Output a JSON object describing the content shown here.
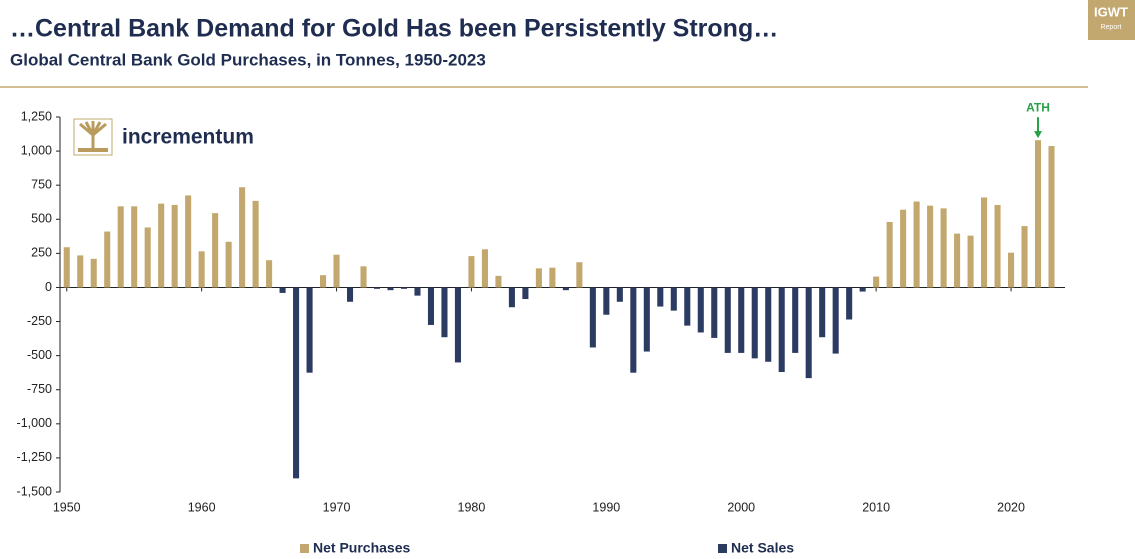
{
  "chart_data": {
    "type": "bar",
    "title": "…Central Bank Demand for Gold Has been Persistently Strong…",
    "subtitle": "Global Central Bank Gold Purchases, in Tonnes, 1950-2023",
    "brand": "incrementum",
    "badge": {
      "title": "IGWT",
      "subtitle": "Report"
    },
    "annotation": "ATH",
    "x": [
      1950,
      1951,
      1952,
      1953,
      1954,
      1955,
      1956,
      1957,
      1958,
      1959,
      1960,
      1961,
      1962,
      1963,
      1964,
      1965,
      1966,
      1967,
      1968,
      1969,
      1970,
      1971,
      1972,
      1973,
      1974,
      1975,
      1976,
      1977,
      1978,
      1979,
      1980,
      1981,
      1982,
      1983,
      1984,
      1985,
      1986,
      1987,
      1988,
      1989,
      1990,
      1991,
      1992,
      1993,
      1994,
      1995,
      1996,
      1997,
      1998,
      1999,
      2000,
      2001,
      2002,
      2003,
      2004,
      2005,
      2006,
      2007,
      2008,
      2009,
      2010,
      2011,
      2012,
      2013,
      2014,
      2015,
      2016,
      2017,
      2018,
      2019,
      2020,
      2021,
      2022,
      2023
    ],
    "series": [
      {
        "name": "Net Purchases",
        "color": "#c2a86e",
        "values": [
          295,
          235,
          210,
          410,
          595,
          595,
          440,
          615,
          605,
          675,
          265,
          545,
          335,
          735,
          635,
          200,
          null,
          null,
          null,
          90,
          240,
          null,
          155,
          null,
          null,
          null,
          null,
          null,
          null,
          null,
          230,
          280,
          85,
          null,
          null,
          140,
          145,
          null,
          185,
          null,
          null,
          null,
          null,
          null,
          null,
          null,
          null,
          null,
          null,
          null,
          null,
          null,
          null,
          null,
          null,
          null,
          null,
          null,
          null,
          null,
          80,
          480,
          570,
          630,
          600,
          580,
          395,
          380,
          660,
          605,
          255,
          450,
          1080,
          1037
        ]
      },
      {
        "name": "Net Sales",
        "color": "#2b3b61",
        "values": [
          null,
          null,
          null,
          null,
          null,
          null,
          null,
          null,
          null,
          null,
          null,
          null,
          null,
          null,
          null,
          null,
          -40,
          -1400,
          -625,
          null,
          null,
          -105,
          null,
          -10,
          -20,
          -10,
          -60,
          -275,
          -365,
          -550,
          null,
          null,
          null,
          -145,
          -85,
          null,
          null,
          -20,
          null,
          -440,
          -200,
          -105,
          -625,
          -470,
          -140,
          -170,
          -280,
          -330,
          -370,
          -480,
          -480,
          -520,
          -545,
          -620,
          -480,
          -665,
          -365,
          -485,
          -235,
          -30,
          null,
          null,
          null,
          null,
          null,
          null,
          null,
          null,
          null,
          null,
          null,
          null,
          null,
          null
        ]
      }
    ],
    "xlim": [
      1949.5,
      2024
    ],
    "xticks": [
      1950,
      1960,
      1970,
      1980,
      1990,
      2000,
      2010,
      2020
    ],
    "ylim": [
      -1500,
      1250
    ],
    "yticks": [
      {
        "value": -1500,
        "label": "-1,500"
      },
      {
        "value": -1250,
        "label": "-1,250"
      },
      {
        "value": -1000,
        "label": "-1,000"
      },
      -750,
      -500,
      -250,
      0,
      250,
      500,
      750,
      {
        "value": 1000,
        "label": "1,000"
      },
      {
        "value": 1250,
        "label": "1,250"
      }
    ]
  }
}
